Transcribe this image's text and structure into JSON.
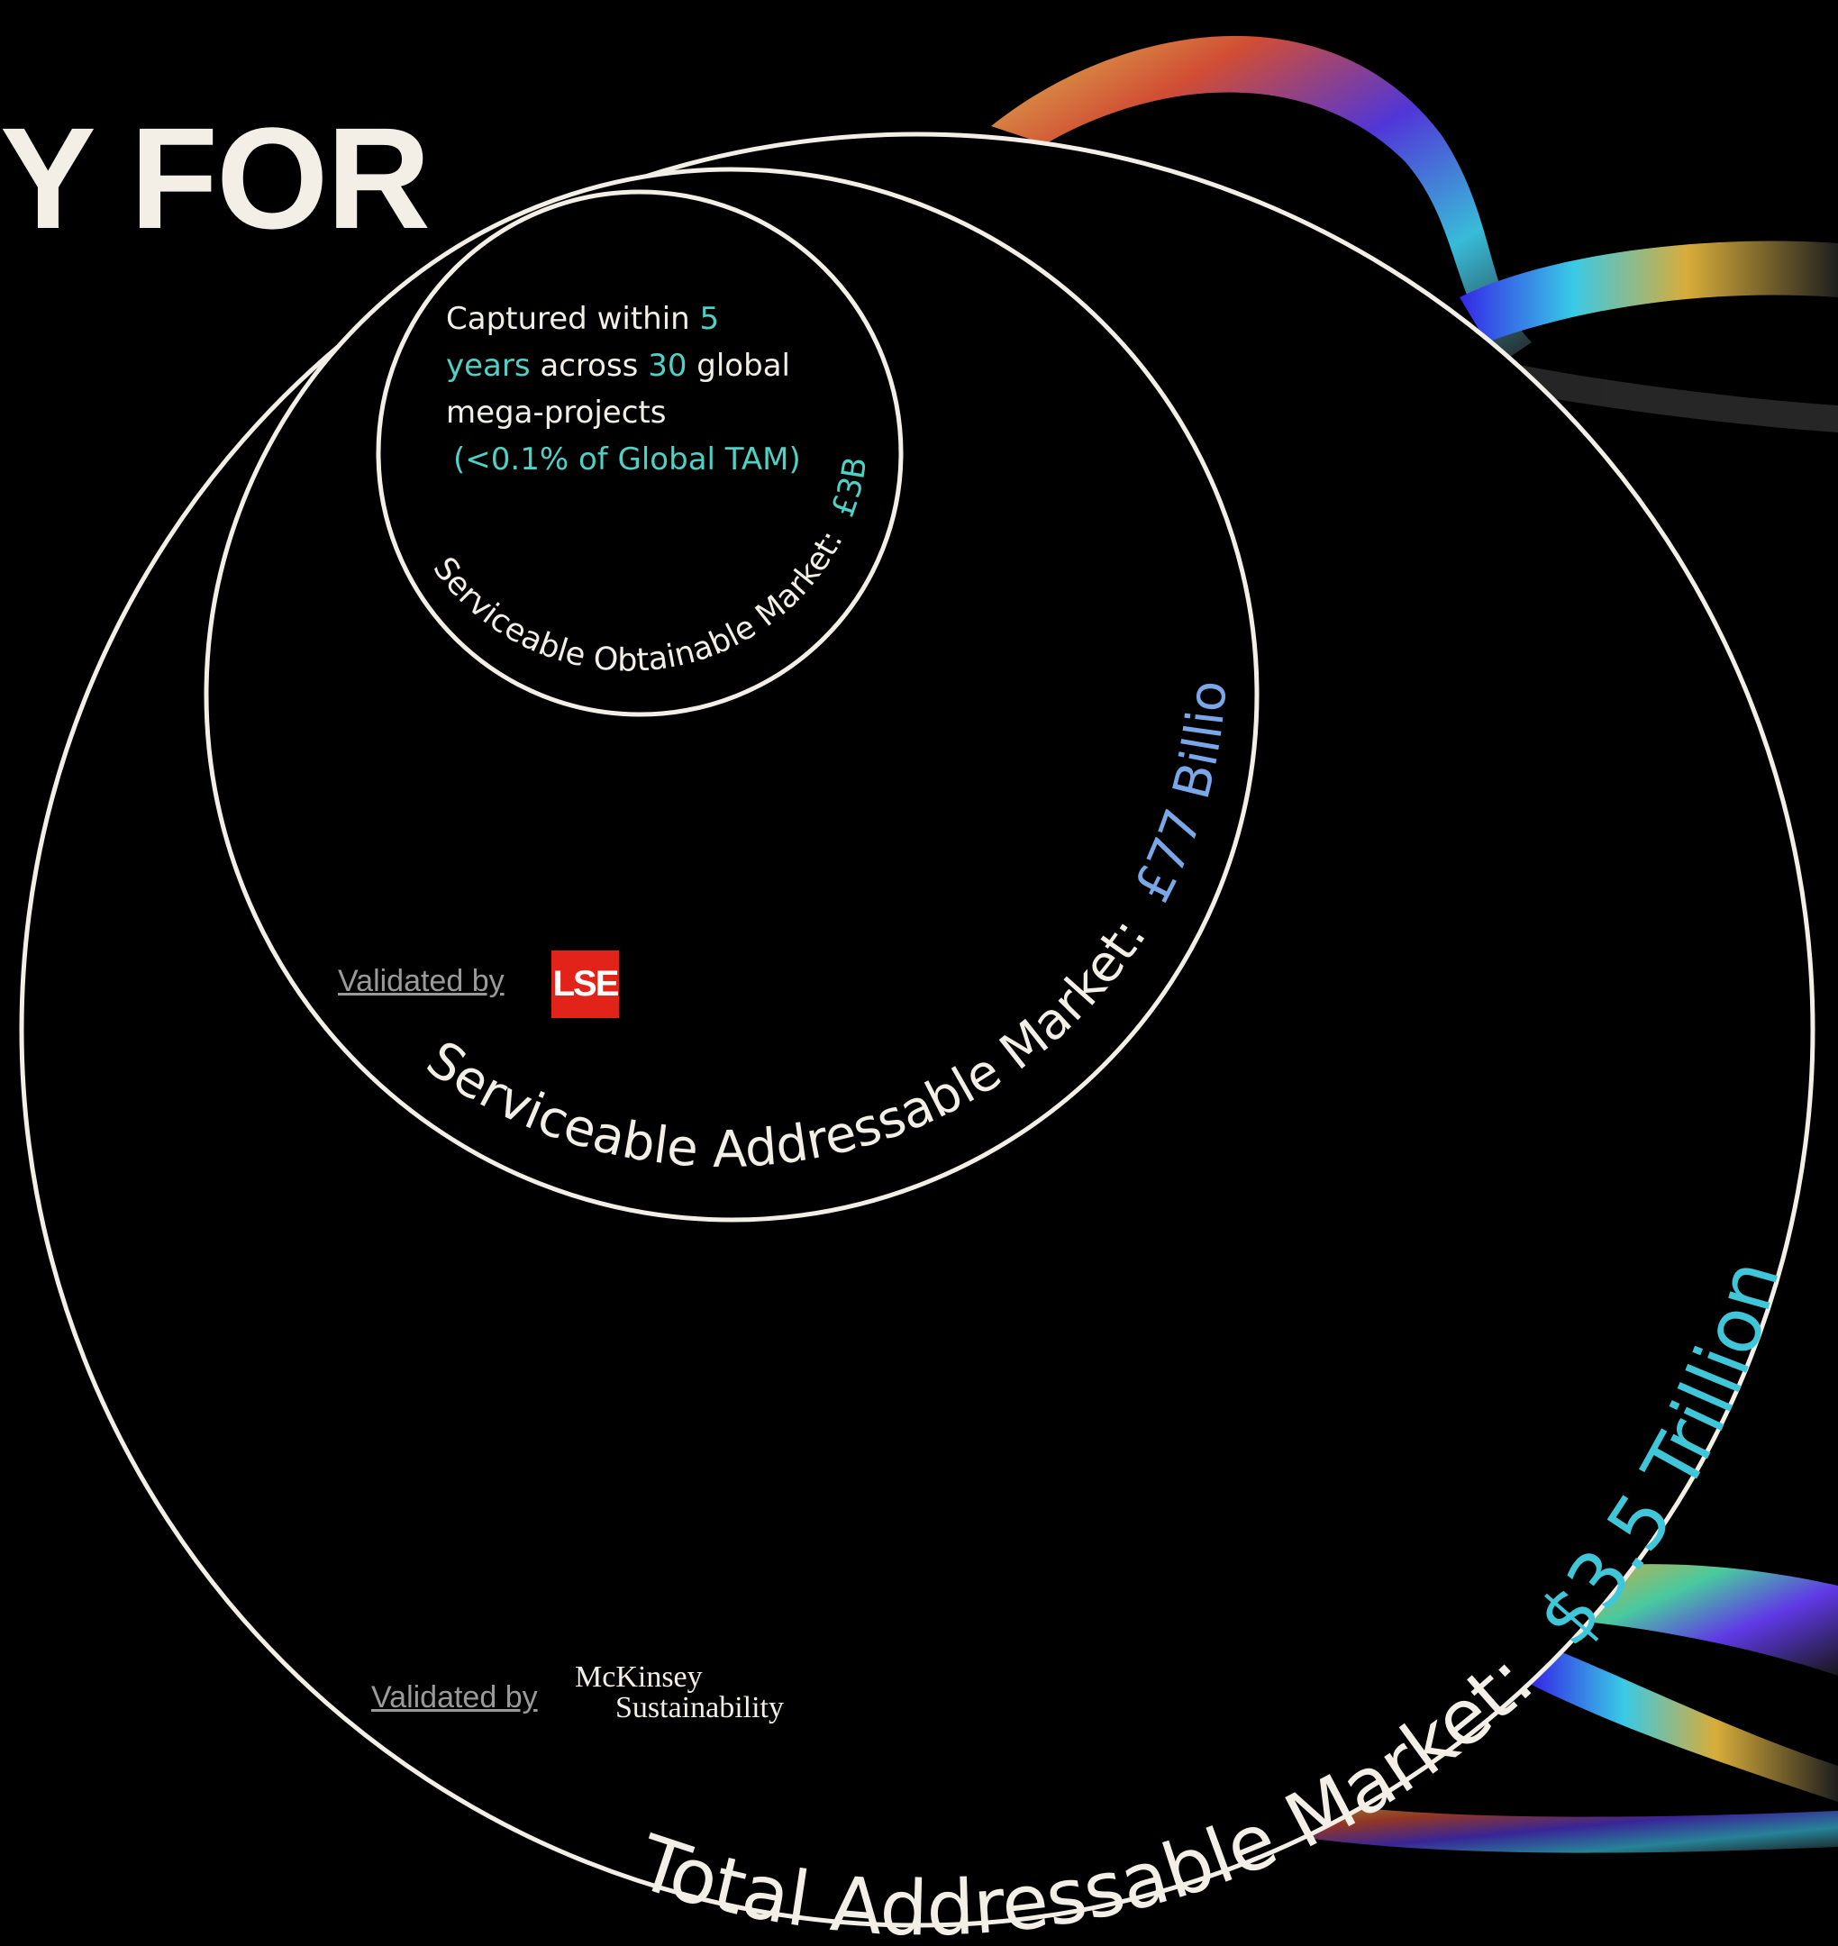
{
  "headline": "Y FOR",
  "som": {
    "line1_prefix": "Captured within",
    "years_number": "5",
    "years_word": "years",
    "across": "across",
    "projects_number": "30",
    "line2_suffix": "global",
    "line3": "mega-projects",
    "note": "(<0.1% of Global TAM)",
    "arc_label": "Serviceable Obtainable Market:",
    "arc_value": "£3B"
  },
  "sam": {
    "arc_label": "Serviceable Addressable Market:",
    "arc_value": "£77 Billion",
    "validated_by": "Validated by",
    "logo_text": "LSE"
  },
  "tam": {
    "arc_label": "Total Addressable Market:",
    "arc_value": "$3.5 Trillion",
    "validated_by": "Validated by",
    "logo_line1": "McKinsey",
    "logo_line2": "Sustainability"
  },
  "colors": {
    "background": "#000000",
    "ring": "#f3efe6",
    "text": "#f3efe6",
    "teal": "#4fd1c5",
    "blue": "#7aa7e8",
    "cyan": "#3fc6d8",
    "lse_red": "#e2231a"
  }
}
